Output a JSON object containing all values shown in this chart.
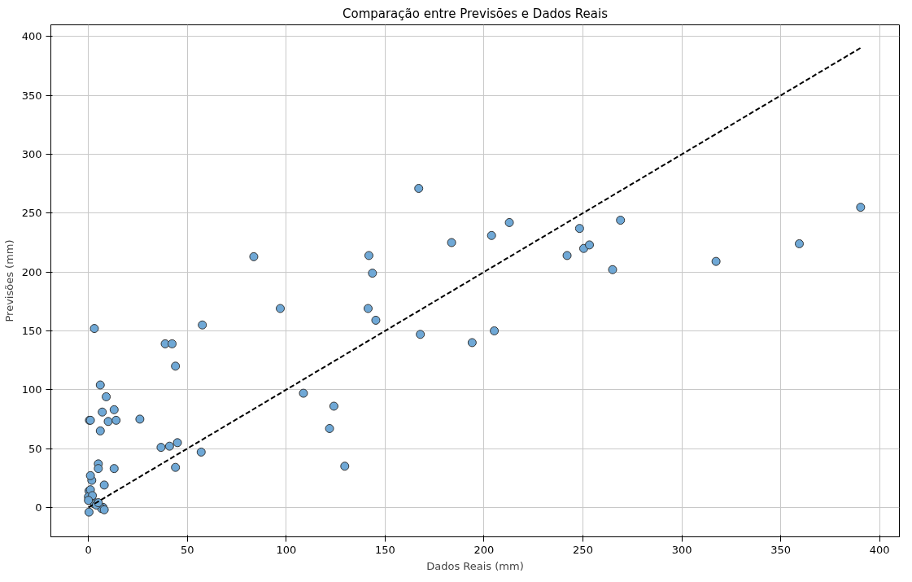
{
  "chart_data": {
    "type": "scatter",
    "title": "Comparação entre Previsões e Dados Reais",
    "xlabel": "Dados Reais (mm)",
    "ylabel": "Previsões (mm)",
    "xlim": [
      -19,
      410
    ],
    "ylim": [
      -25,
      410
    ],
    "xticks": [
      0,
      50,
      100,
      150,
      200,
      250,
      300,
      350,
      400
    ],
    "yticks": [
      0,
      50,
      100,
      150,
      200,
      250,
      300,
      350,
      400
    ],
    "grid": true,
    "series": [
      {
        "color": "#6fa8d6",
        "marker": "circle",
        "x": [
          0.5,
          3,
          6,
          9,
          7,
          13,
          1,
          10,
          14,
          6,
          26,
          36.7,
          41,
          45,
          57,
          44,
          44,
          5,
          5,
          13,
          8,
          1.7,
          1,
          0.3,
          0,
          2.4,
          0.3,
          7.4,
          6.7,
          1,
          2,
          3,
          4,
          5,
          0,
          8,
          83.6,
          97,
          57.6,
          38.8,
          42.3,
          141.8,
          143.6,
          141.4,
          145.3,
          183.6,
          203.8,
          212.8,
          167.8,
          194,
          205.2,
          108.7,
          124.1,
          121.9,
          129.6,
          167,
          248.3,
          250.4,
          253.3,
          242,
          265,
          269,
          317.3,
          359.4,
          390.4
        ],
        "values": [
          74,
          152,
          104,
          94,
          81,
          83,
          74,
          73,
          74,
          65,
          75,
          51,
          52,
          55,
          47,
          120,
          34,
          37,
          33,
          33,
          19,
          23,
          27,
          14,
          9,
          5,
          -4,
          0,
          -1,
          15,
          10,
          3,
          2,
          4,
          6,
          -2,
          213,
          169,
          155,
          139,
          139,
          214,
          199,
          169,
          159,
          225,
          231,
          242,
          147,
          140,
          150,
          97,
          86,
          67,
          35,
          271,
          237,
          220,
          223,
          214,
          202,
          244,
          209,
          224,
          255
        ]
      },
      {
        "type": "line",
        "color": "#000000",
        "line_style": "dashed",
        "x": [
          0,
          390.4
        ],
        "values": [
          0,
          390.4
        ]
      }
    ]
  }
}
